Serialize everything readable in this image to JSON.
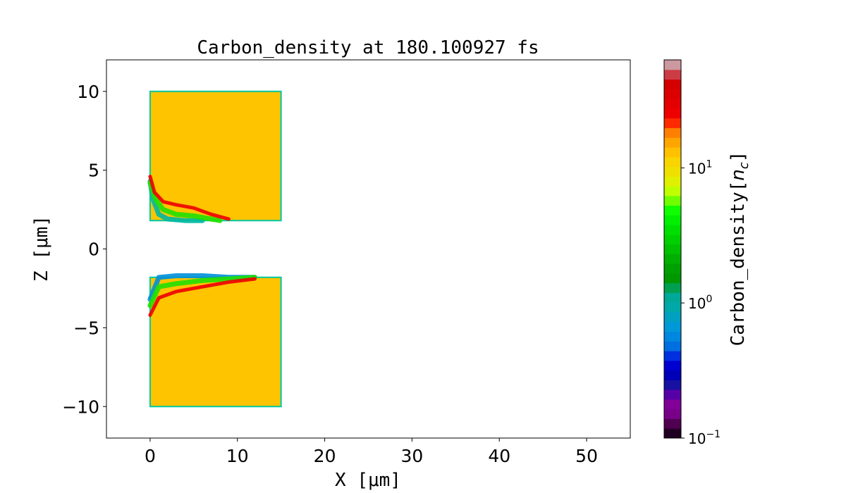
{
  "chart_data": {
    "type": "heatmap",
    "title": "Carbon_density at 180.100927 fs",
    "xlabel": "X  [μm]",
    "ylabel": "Z  [μm]",
    "xlim": [
      -5,
      55
    ],
    "ylim": [
      -12,
      12
    ],
    "xticks": [
      0,
      10,
      20,
      30,
      40,
      50
    ],
    "xtick_labels": [
      "0",
      "10",
      "20",
      "30",
      "40",
      "50"
    ],
    "yticks": [
      -10,
      -5,
      0,
      5,
      10
    ],
    "ytick_labels": [
      "−10",
      "−5",
      "0",
      "5",
      "10"
    ],
    "grid": false,
    "colorbar": {
      "label": "Carbon_density[n_c]",
      "label_main": "Carbon_density[",
      "label_n": "n",
      "label_sub": "c",
      "label_end": "]",
      "scale": "log",
      "range": [
        0.1,
        63
      ],
      "ticks": [
        0.1,
        1,
        10
      ],
      "tick_labels": [
        {
          "base": "10",
          "exp": "−1"
        },
        {
          "base": "10",
          "exp": "0"
        },
        {
          "base": "10",
          "exp": "1"
        }
      ],
      "colors_bottom_to_top": [
        "#200020",
        "#500050",
        "#780088",
        "#800098",
        "#5800a8",
        "#1810a0",
        "#0000b8",
        "#0000d0",
        "#0030e0",
        "#0070e0",
        "#0088e0",
        "#0098d8",
        "#00a0c0",
        "#00a8a8",
        "#00a898",
        "#00a050",
        "#009800",
        "#00a000",
        "#00b000",
        "#00c000",
        "#00d000",
        "#00e000",
        "#00f000",
        "#10ff00",
        "#70ff00",
        "#c0ff00",
        "#e0f000",
        "#f0e000",
        "#f8d400",
        "#ffc000",
        "#ffa500",
        "#ff7f00",
        "#ff2a00",
        "#ee0000",
        "#e40000",
        "#dc0000",
        "#d40000",
        "#cc3c44",
        "#cc99a0"
      ]
    },
    "regions": [
      {
        "name": "upper target",
        "x": [
          0,
          15
        ],
        "z": [
          1.8,
          10
        ],
        "density": 20
      },
      {
        "name": "lower target",
        "x": [
          0,
          15
        ],
        "z": [
          -10,
          -1.8
        ],
        "density": 20
      }
    ],
    "features": [
      {
        "color": "#00b8a0",
        "density": 1,
        "points": [
          [
            0,
            4.3
          ],
          [
            0.3,
            3.2
          ],
          [
            1,
            2.2
          ],
          [
            2,
            1.9
          ],
          [
            4,
            1.8
          ],
          [
            6,
            1.8
          ]
        ]
      },
      {
        "color": "#20e000",
        "density": 4,
        "points": [
          [
            0,
            4.2
          ],
          [
            0.6,
            3.2
          ],
          [
            1.5,
            2.5
          ],
          [
            3,
            2.2
          ],
          [
            5,
            2.1
          ],
          [
            7,
            1.9
          ],
          [
            8,
            1.8
          ]
        ]
      },
      {
        "color": "#ee0000",
        "density": 50,
        "points": [
          [
            0,
            4.6
          ],
          [
            0.5,
            3.6
          ],
          [
            1.5,
            3.0
          ],
          [
            3,
            2.8
          ],
          [
            5,
            2.6
          ],
          [
            7,
            2.2
          ],
          [
            9,
            1.9
          ]
        ]
      },
      {
        "color": "#0090d8",
        "density": 0.7,
        "points": [
          [
            0,
            -3.2
          ],
          [
            1,
            -1.8
          ],
          [
            3,
            -1.7
          ],
          [
            6,
            -1.7
          ],
          [
            9,
            -1.8
          ],
          [
            12,
            -1.8
          ]
        ]
      },
      {
        "color": "#20e000",
        "density": 4,
        "points": [
          [
            0,
            -3.6
          ],
          [
            1,
            -2.4
          ],
          [
            3,
            -2.2
          ],
          [
            6,
            -2.0
          ],
          [
            9,
            -1.9
          ],
          [
            12,
            -1.8
          ]
        ]
      },
      {
        "color": "#ee0000",
        "density": 50,
        "points": [
          [
            0,
            -4.2
          ],
          [
            1,
            -3.1
          ],
          [
            3,
            -2.7
          ],
          [
            6,
            -2.4
          ],
          [
            9,
            -2.1
          ],
          [
            12,
            -1.9
          ]
        ]
      }
    ]
  }
}
